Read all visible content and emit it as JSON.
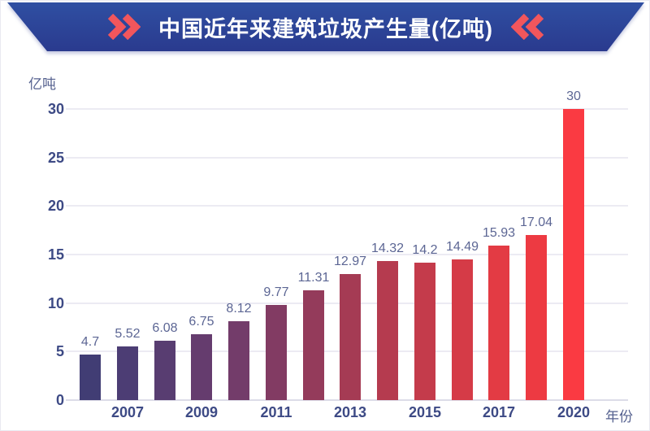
{
  "header": {
    "title": "中国近年来建筑垃圾产生量(亿吨)",
    "left_icon": "double-chevron-right-icon",
    "right_icon": "double-chevron-left-icon",
    "accent_color": "#f2565c",
    "banner_color_top": "#2f4fa2",
    "banner_color_bottom": "#2a3a8e"
  },
  "chart_data": {
    "type": "bar",
    "title": "中国近年来建筑垃圾产生量(亿吨)",
    "y_unit": "亿吨",
    "x_unit": "年份",
    "ylim": [
      0,
      30
    ],
    "y_ticks": [
      0,
      5,
      10,
      15,
      20,
      25,
      30
    ],
    "grid": true,
    "bars": [
      {
        "value": 4.7,
        "value_label": "4.7",
        "x_label": "",
        "color": "#413d74"
      },
      {
        "value": 5.52,
        "value_label": "5.52",
        "x_label": "2007",
        "color": "#4c3d74"
      },
      {
        "value": 6.08,
        "value_label": "6.08",
        "x_label": "",
        "color": "#583d71"
      },
      {
        "value": 6.75,
        "value_label": "6.75",
        "x_label": "2009",
        "color": "#653c6e"
      },
      {
        "value": 8.12,
        "value_label": "8.12",
        "x_label": "",
        "color": "#733c6a"
      },
      {
        "value": 9.77,
        "value_label": "9.77",
        "x_label": "2011",
        "color": "#823b63"
      },
      {
        "value": 11.31,
        "value_label": "11.31",
        "x_label": "",
        "color": "#943b5b"
      },
      {
        "value": 12.97,
        "value_label": "12.97",
        "x_label": "2013",
        "color": "#a53b54"
      },
      {
        "value": 14.32,
        "value_label": "14.32",
        "x_label": "",
        "color": "#b53b4f"
      },
      {
        "value": 14.2,
        "value_label": "14.2",
        "x_label": "2015",
        "color": "#c43b4b"
      },
      {
        "value": 14.49,
        "value_label": "14.49",
        "x_label": "",
        "color": "#d53b47"
      },
      {
        "value": 15.93,
        "value_label": "15.93",
        "x_label": "2017",
        "color": "#e33b44"
      },
      {
        "value": 17.04,
        "value_label": "17.04",
        "x_label": "",
        "color": "#ed3a42"
      },
      {
        "value": 30,
        "value_label": "30",
        "x_label": "2020",
        "color": "#fa3a42"
      }
    ],
    "style": {
      "grid_color": "#ecebf3",
      "baseline_color": "#dcdce8",
      "axis_label_color": "#3d4a85",
      "value_label_color": "#5c6694",
      "unit_label_color": "#55618f"
    }
  }
}
